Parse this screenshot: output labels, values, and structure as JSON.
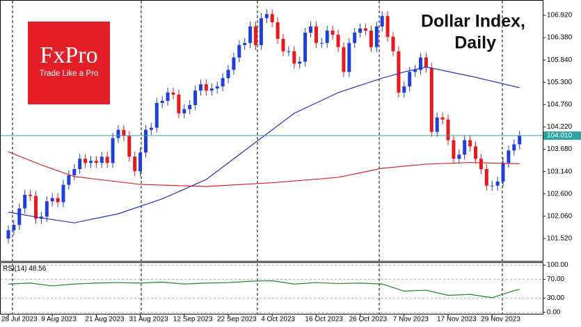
{
  "chart_data": [
    {
      "type": "candlestick",
      "title": "Dollar Index,",
      "subtitle": "Daily",
      "logo": {
        "brand": "FxPro",
        "tagline": "Trade Like a Pro"
      },
      "categories": [
        "28 Jul 2023",
        null,
        null,
        null,
        null,
        null,
        null,
        null,
        "9 Aug 2023",
        null,
        null,
        null,
        null,
        null,
        null,
        null,
        "21 Aug 2023",
        null,
        null,
        null,
        null,
        null,
        null,
        null,
        "31 Aug 2023",
        null,
        null,
        null,
        null,
        null,
        null,
        null,
        "12 Sep 2023",
        null,
        null,
        null,
        null,
        null,
        null,
        null,
        "22 Sep 2023",
        null,
        null,
        null,
        null,
        null,
        null,
        null,
        "4 Oct 2023",
        null,
        null,
        null,
        null,
        null,
        null,
        null,
        "16 Oct 2023",
        null,
        null,
        null,
        null,
        null,
        null,
        null,
        "26 Oct 2023",
        null,
        null,
        null,
        null,
        null,
        null,
        null,
        "7 Nov 2023",
        null,
        null,
        null,
        null,
        null,
        null,
        null,
        "17 Nov 2023",
        null,
        null,
        null,
        null,
        null,
        null,
        null,
        "29 Nov 2023",
        null,
        null,
        null,
        null,
        null
      ],
      "ylim": [
        100.98,
        107.29
      ],
      "yticks": [
        {
          "value": 106.92,
          "label": "106.920"
        },
        {
          "value": 106.38,
          "label": "106.380"
        },
        {
          "value": 105.84,
          "label": "105.840"
        },
        {
          "value": 105.3,
          "label": "105.300"
        },
        {
          "value": 104.76,
          "label": "104.760"
        },
        {
          "value": 104.22,
          "label": "104.220"
        },
        {
          "value": 103.68,
          "label": "103.680"
        },
        {
          "value": 103.14,
          "label": "103.140"
        },
        {
          "value": 102.6,
          "label": "102.600"
        },
        {
          "value": 102.06,
          "label": "102.060"
        },
        {
          "value": 101.52,
          "label": "101.520"
        }
      ],
      "current_price": {
        "value": 104.01,
        "label": "104.010",
        "color": "#2aa3a3"
      },
      "series": [
        {
          "kind": "candlestick",
          "up_color": "#1f3fd8",
          "down_color": "#e8181d",
          "values": [
            [
              101.52,
              101.84,
              101.4,
              101.72
            ],
            [
              101.72,
              101.97,
              101.6,
              101.85
            ],
            [
              101.85,
              102.37,
              101.73,
              102.25
            ],
            [
              102.25,
              102.7,
              102.13,
              102.58
            ],
            [
              102.58,
              102.7,
              102.43,
              102.55
            ],
            [
              102.55,
              102.67,
              101.88,
              102.0
            ],
            [
              102.0,
              102.17,
              101.88,
              102.05
            ],
            [
              102.05,
              102.54,
              101.93,
              102.42
            ],
            [
              102.42,
              102.62,
              102.3,
              102.5
            ],
            [
              102.5,
              102.62,
              102.28,
              102.4
            ],
            [
              102.4,
              102.94,
              102.28,
              102.82
            ],
            [
              102.82,
              103.17,
              102.7,
              103.05
            ],
            [
              103.05,
              103.32,
              102.93,
              103.2
            ],
            [
              103.2,
              103.57,
              103.08,
              103.45
            ],
            [
              103.45,
              103.57,
              103.23,
              103.35
            ],
            [
              103.35,
              103.52,
              103.23,
              103.4
            ],
            [
              103.4,
              103.52,
              103.23,
              103.35
            ],
            [
              103.35,
              103.62,
              103.23,
              103.5
            ],
            [
              103.5,
              103.62,
              103.23,
              103.35
            ],
            [
              103.35,
              104.07,
              103.23,
              103.95
            ],
            [
              103.95,
              104.27,
              103.83,
              104.15
            ],
            [
              104.15,
              104.27,
              103.88,
              104.0
            ],
            [
              104.0,
              104.12,
              103.38,
              103.5
            ],
            [
              103.5,
              103.62,
              103.03,
              103.15
            ],
            [
              103.15,
              103.72,
              103.03,
              103.6
            ],
            [
              103.6,
              104.27,
              103.48,
              104.15
            ],
            [
              104.15,
              104.32,
              104.03,
              104.2
            ],
            [
              104.2,
              104.92,
              104.08,
              104.8
            ],
            [
              104.8,
              104.97,
              104.68,
              104.85
            ],
            [
              104.85,
              105.17,
              104.73,
              105.05
            ],
            [
              105.05,
              105.17,
              104.88,
              105.0
            ],
            [
              105.0,
              105.12,
              104.43,
              104.55
            ],
            [
              104.55,
              104.77,
              104.43,
              104.65
            ],
            [
              104.65,
              104.87,
              104.53,
              104.75
            ],
            [
              104.75,
              105.22,
              104.63,
              105.1
            ],
            [
              105.1,
              105.37,
              104.98,
              105.25
            ],
            [
              105.25,
              105.37,
              104.98,
              105.1
            ],
            [
              105.1,
              105.27,
              104.98,
              105.15
            ],
            [
              105.15,
              105.32,
              105.03,
              105.2
            ],
            [
              105.2,
              105.52,
              105.08,
              105.4
            ],
            [
              105.4,
              105.72,
              105.28,
              105.6
            ],
            [
              105.6,
              106.02,
              105.48,
              105.9
            ],
            [
              105.9,
              106.32,
              105.78,
              106.2
            ],
            [
              106.2,
              106.37,
              106.08,
              106.25
            ],
            [
              106.25,
              106.77,
              106.13,
              106.65
            ],
            [
              106.65,
              106.77,
              106.08,
              106.2
            ],
            [
              106.2,
              106.97,
              106.08,
              106.85
            ],
            [
              106.85,
              107.07,
              106.73,
              106.95
            ],
            [
              106.95,
              107.07,
              106.63,
              106.75
            ],
            [
              106.75,
              106.87,
              106.23,
              106.35
            ],
            [
              106.35,
              106.47,
              105.93,
              106.05
            ],
            [
              106.05,
              106.17,
              105.93,
              106.05
            ],
            [
              106.05,
              106.17,
              105.63,
              105.75
            ],
            [
              105.75,
              105.92,
              105.63,
              105.8
            ],
            [
              105.8,
              106.62,
              105.68,
              106.5
            ],
            [
              106.5,
              106.77,
              106.38,
              106.65
            ],
            [
              106.65,
              106.77,
              106.13,
              106.25
            ],
            [
              106.25,
              106.37,
              106.13,
              106.25
            ],
            [
              106.25,
              106.67,
              106.13,
              106.55
            ],
            [
              106.55,
              106.67,
              106.33,
              106.45
            ],
            [
              106.45,
              106.57,
              106.03,
              106.15
            ],
            [
              106.15,
              106.27,
              105.43,
              105.55
            ],
            [
              105.55,
              106.37,
              105.43,
              106.25
            ],
            [
              106.25,
              106.62,
              106.13,
              106.5
            ],
            [
              106.5,
              106.72,
              106.38,
              106.6
            ],
            [
              106.6,
              106.72,
              106.43,
              106.55
            ],
            [
              106.55,
              106.67,
              106.03,
              106.15
            ],
            [
              106.15,
              106.77,
              106.03,
              106.65
            ],
            [
              106.65,
              107.02,
              106.53,
              106.9
            ],
            [
              106.9,
              107.02,
              106.28,
              106.4
            ],
            [
              106.4,
              106.52,
              105.93,
              106.05
            ],
            [
              106.05,
              106.17,
              104.93,
              105.05
            ],
            [
              105.05,
              105.32,
              104.93,
              105.2
            ],
            [
              105.2,
              105.67,
              105.08,
              105.55
            ],
            [
              105.55,
              105.72,
              105.43,
              105.6
            ],
            [
              105.6,
              106.02,
              105.48,
              105.9
            ],
            [
              105.9,
              106.02,
              105.53,
              105.65
            ],
            [
              105.65,
              105.77,
              103.98,
              104.1
            ],
            [
              104.1,
              104.57,
              103.98,
              104.45
            ],
            [
              104.45,
              104.57,
              104.28,
              104.4
            ],
            [
              104.4,
              104.52,
              103.78,
              103.9
            ],
            [
              103.9,
              104.02,
              103.33,
              103.45
            ],
            [
              103.45,
              103.67,
              103.33,
              103.55
            ],
            [
              103.55,
              104.02,
              103.43,
              103.9
            ],
            [
              103.9,
              104.02,
              103.63,
              103.75
            ],
            [
              103.75,
              103.87,
              103.33,
              103.45
            ],
            [
              103.45,
              103.57,
              103.08,
              103.2
            ],
            [
              103.2,
              103.32,
              102.68,
              102.8
            ],
            [
              102.8,
              102.92,
              102.68,
              102.8
            ],
            [
              102.8,
              103.02,
              102.68,
              102.9
            ],
            [
              102.9,
              103.47,
              102.78,
              103.35
            ],
            [
              103.35,
              103.77,
              103.23,
              103.65
            ],
            [
              103.65,
              103.92,
              103.53,
              103.8
            ],
            [
              103.8,
              104.13,
              103.68,
              104.01
            ]
          ]
        },
        {
          "kind": "line",
          "color": "#1f2fd0",
          "x": [
            0,
            6,
            12,
            20,
            28,
            36,
            44,
            52,
            60,
            68,
            72,
            76,
            84,
            93
          ],
          "values": [
            102.16,
            102.02,
            101.9,
            102.12,
            102.48,
            102.95,
            103.75,
            104.55,
            105.05,
            105.4,
            105.55,
            105.67,
            105.45,
            105.17
          ]
        },
        {
          "kind": "line",
          "color": "#e02020",
          "x": [
            0,
            6,
            12,
            24,
            36,
            48,
            60,
            68,
            76,
            84,
            93
          ],
          "values": [
            103.62,
            103.3,
            103.02,
            102.83,
            102.78,
            102.87,
            103.0,
            103.22,
            103.32,
            103.36,
            103.33
          ]
        }
      ]
    },
    {
      "type": "line",
      "title": "RSI(14)",
      "ylim": [
        -4.5,
        106
      ],
      "yticks": [
        {
          "value": 100,
          "label": "100.00"
        },
        {
          "value": 70,
          "label": "70.00"
        },
        {
          "value": 30,
          "label": "30.00"
        },
        {
          "value": 0,
          "label": "0.00"
        }
      ],
      "series": [
        {
          "color": "#1a8a1a",
          "x": [
            0,
            4,
            8,
            12,
            16,
            20,
            24,
            28,
            32,
            36,
            40,
            44,
            48,
            52,
            56,
            60,
            64,
            68,
            72,
            76,
            80,
            84,
            88,
            92,
            93
          ],
          "values": [
            60,
            62,
            56,
            60,
            62,
            63,
            62,
            64,
            60,
            62,
            63,
            66,
            67,
            60,
            63,
            61,
            62,
            60,
            45,
            47,
            36,
            38,
            31,
            46,
            48.56
          ]
        }
      ]
    }
  ]
}
